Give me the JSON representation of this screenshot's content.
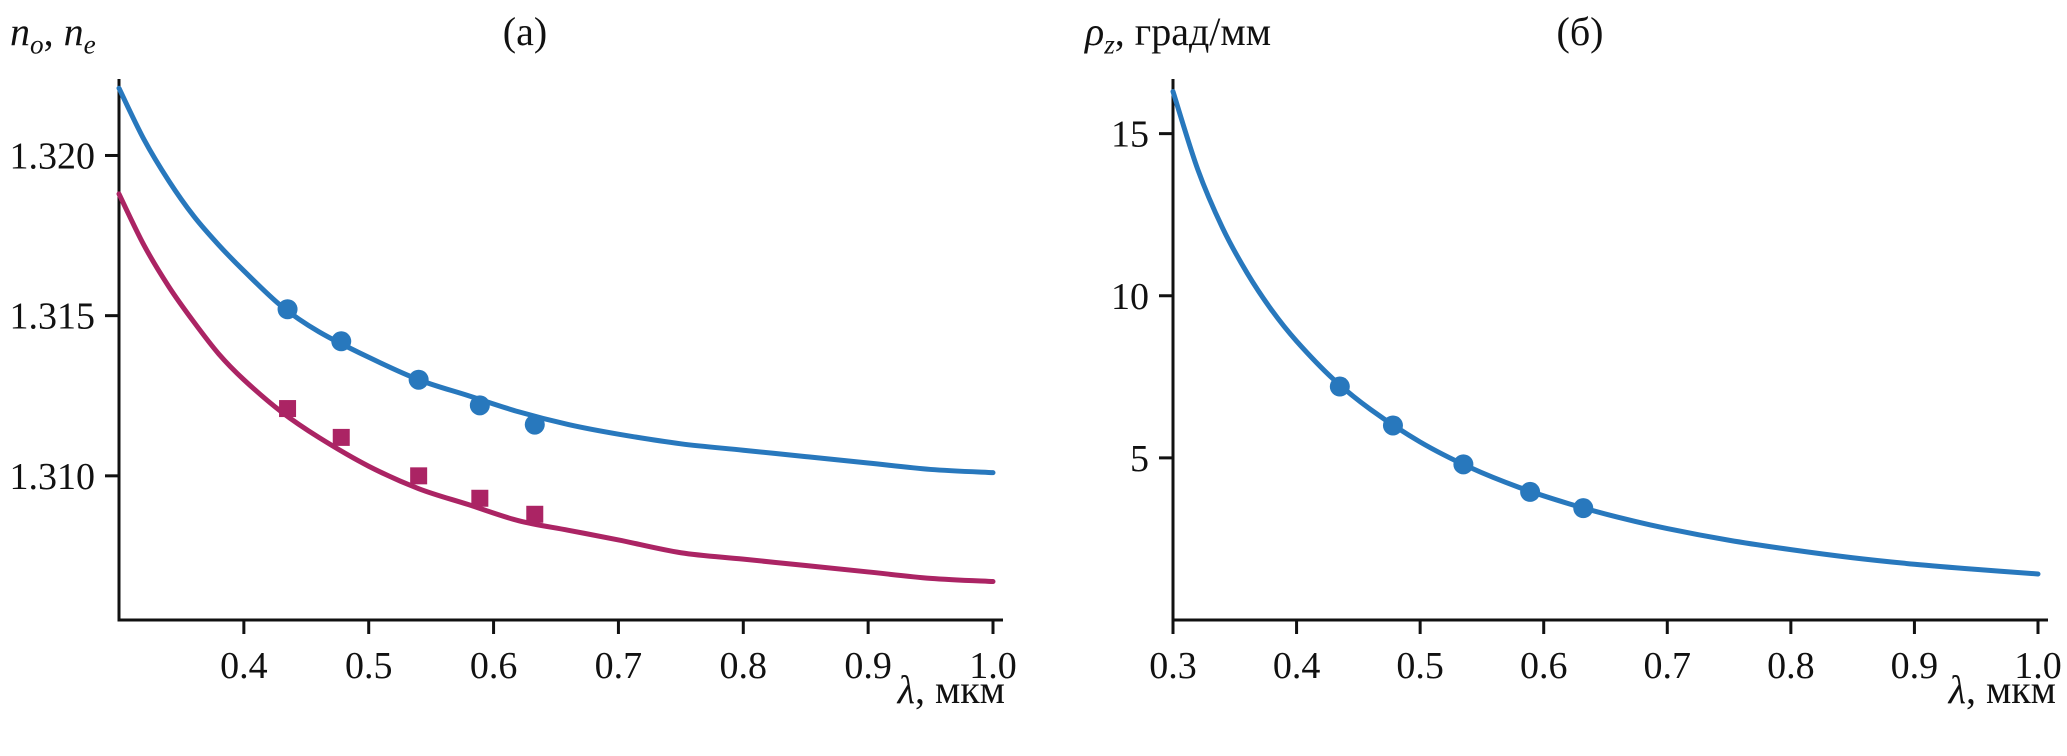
{
  "figure": {
    "background": "#ffffff",
    "axis_color": "#111111",
    "blue": "#2878bd",
    "crimson": "#ab2464"
  },
  "chart_data": [
    {
      "type": "line",
      "panel_label": "(а)",
      "ylabel_runs": [
        {
          "text": "n",
          "italic": true
        },
        {
          "text": "o",
          "italic": true,
          "sub": true
        },
        {
          "text": ", ",
          "italic": false
        },
        {
          "text": "n",
          "italic": true
        },
        {
          "text": "e",
          "italic": true,
          "sub": true
        }
      ],
      "xlabel_runs": [
        {
          "text": "λ",
          "italic": true
        },
        {
          "text": ", мкм",
          "italic": false
        }
      ],
      "xlim": [
        0.3,
        1.0
      ],
      "ylim": [
        1.3055,
        1.3222
      ],
      "x_ticks": [
        0.4,
        0.5,
        0.6,
        0.7,
        0.8,
        0.9,
        1.0
      ],
      "x_tick_labels": [
        "0.4",
        "0.5",
        "0.6",
        "0.7",
        "0.8",
        "0.9",
        "1.0"
      ],
      "y_ticks": [
        1.31,
        1.315,
        1.32
      ],
      "y_tick_labels": [
        "1.310",
        "1.315",
        "1.320"
      ],
      "grid": false,
      "legend": "none",
      "series": [
        {
          "name": "n_o dispersion curve",
          "kind": "line",
          "color": "#2878bd",
          "x": [
            0.3,
            0.32,
            0.34,
            0.36,
            0.38,
            0.4,
            0.43,
            0.46,
            0.5,
            0.54,
            0.58,
            0.62,
            0.66,
            0.7,
            0.75,
            0.8,
            0.85,
            0.9,
            0.95,
            1.0
          ],
          "y": [
            1.3221,
            1.3205,
            1.3192,
            1.3181,
            1.3172,
            1.3164,
            1.3153,
            1.3145,
            1.3137,
            1.313,
            1.3125,
            1.312,
            1.3116,
            1.3113,
            1.311,
            1.3108,
            1.3106,
            1.3104,
            1.3102,
            1.3101
          ]
        },
        {
          "name": "n_e dispersion curve",
          "kind": "line",
          "color": "#ab2464",
          "x": [
            0.3,
            0.32,
            0.34,
            0.36,
            0.38,
            0.4,
            0.43,
            0.46,
            0.5,
            0.54,
            0.58,
            0.62,
            0.66,
            0.7,
            0.75,
            0.8,
            0.85,
            0.9,
            0.95,
            1.0
          ],
          "y": [
            1.3188,
            1.3172,
            1.3159,
            1.3148,
            1.3138,
            1.313,
            1.312,
            1.3112,
            1.3103,
            1.3096,
            1.3091,
            1.3086,
            1.3083,
            1.308,
            1.3076,
            1.3074,
            1.3072,
            1.307,
            1.3068,
            1.3067
          ]
        },
        {
          "name": "n_o experimental points",
          "kind": "scatter",
          "marker": "circle",
          "color": "#2878bd",
          "x": [
            0.435,
            0.478,
            0.54,
            0.589,
            0.633
          ],
          "y": [
            1.3152,
            1.3142,
            1.313,
            1.3122,
            1.3116
          ]
        },
        {
          "name": "n_e experimental points",
          "kind": "scatter",
          "marker": "square",
          "color": "#ab2464",
          "x": [
            0.435,
            0.478,
            0.54,
            0.589,
            0.633
          ],
          "y": [
            1.3121,
            1.3112,
            1.31,
            1.3093,
            1.3088
          ]
        }
      ]
    },
    {
      "type": "line",
      "panel_label": "(б)",
      "ylabel_runs": [
        {
          "text": "ρ",
          "italic": true
        },
        {
          "text": "z",
          "italic": true,
          "sub": true
        },
        {
          "text": ", град/мм",
          "italic": false
        }
      ],
      "xlabel_runs": [
        {
          "text": "λ",
          "italic": true
        },
        {
          "text": ", мкм",
          "italic": false
        }
      ],
      "xlim": [
        0.3,
        1.0
      ],
      "ylim": [
        0,
        16.5
      ],
      "x_ticks": [
        0.3,
        0.4,
        0.5,
        0.6,
        0.7,
        0.8,
        0.9,
        1.0
      ],
      "x_tick_labels": [
        "0.3",
        "0.4",
        "0.5",
        "0.6",
        "0.7",
        "0.8",
        "0.9",
        "1.0"
      ],
      "y_ticks": [
        5,
        10,
        15
      ],
      "y_tick_labels": [
        "5",
        "10",
        "15"
      ],
      "grid": false,
      "legend": "none",
      "series": [
        {
          "name": "rotatory power curve",
          "kind": "line",
          "color": "#2878bd",
          "x": [
            0.3,
            0.32,
            0.34,
            0.36,
            0.38,
            0.4,
            0.43,
            0.46,
            0.5,
            0.54,
            0.58,
            0.62,
            0.66,
            0.7,
            0.75,
            0.8,
            0.85,
            0.9,
            0.95,
            1.0
          ],
          "y": [
            16.3,
            13.9,
            12.1,
            10.7,
            9.55,
            8.6,
            7.42,
            6.49,
            5.49,
            4.71,
            4.09,
            3.59,
            3.17,
            2.82,
            2.46,
            2.17,
            1.92,
            1.72,
            1.56,
            1.42
          ]
        },
        {
          "name": "rotatory power experimental points",
          "kind": "scatter",
          "marker": "circle",
          "color": "#2878bd",
          "x": [
            0.435,
            0.478,
            0.535,
            0.589,
            0.632
          ],
          "y": [
            7.2,
            6.0,
            4.8,
            3.95,
            3.45
          ]
        }
      ]
    }
  ]
}
